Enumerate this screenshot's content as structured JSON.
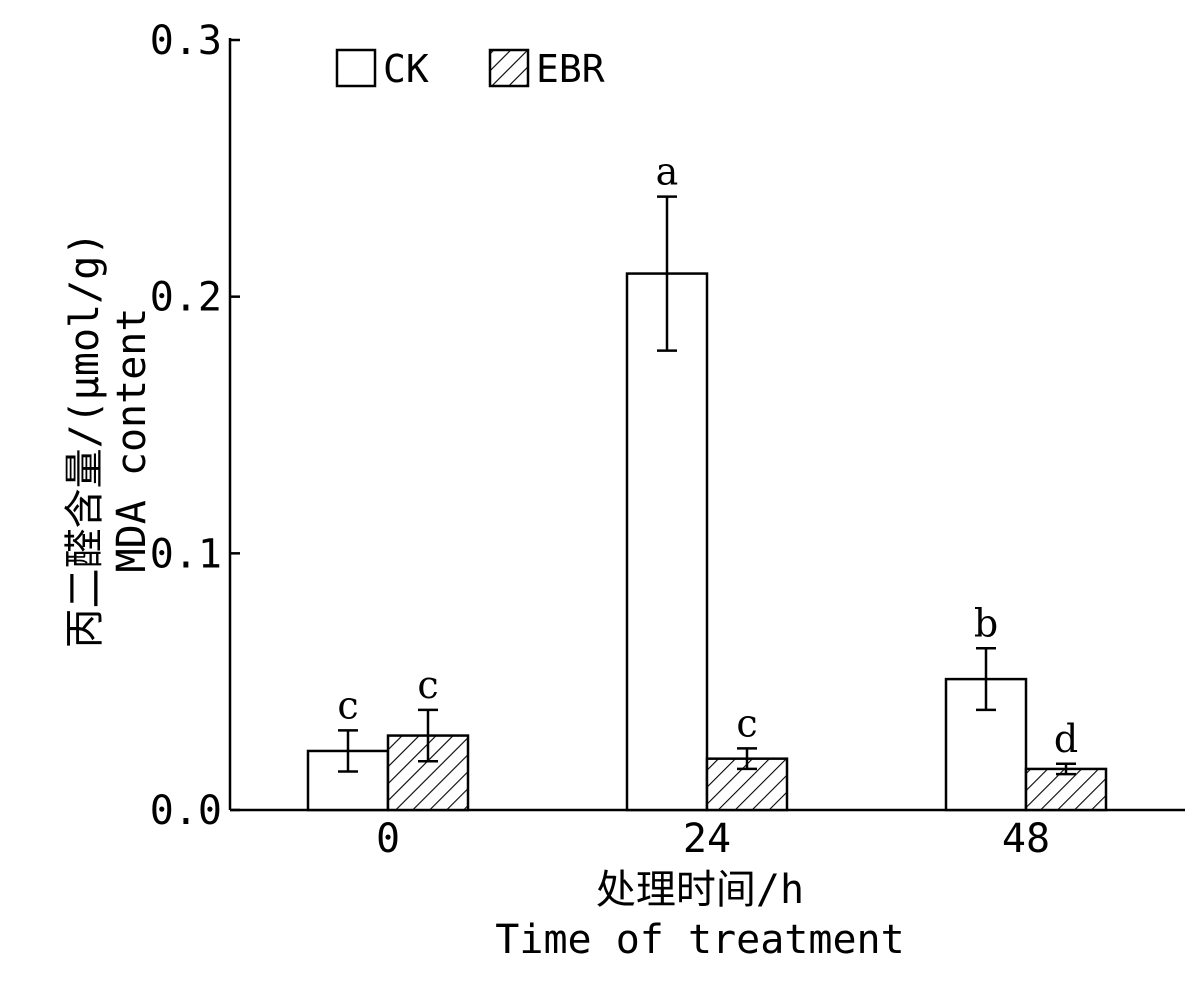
{
  "chart_data": {
    "type": "bar",
    "categories": [
      "0",
      "24",
      "48"
    ],
    "series": [
      {
        "name": "CK",
        "pattern": "open",
        "values": [
          0.023,
          0.209,
          0.051
        ],
        "errors": [
          0.008,
          0.03,
          0.012
        ],
        "labels": [
          "c",
          "a",
          "b"
        ]
      },
      {
        "name": "EBR",
        "pattern": "hatched",
        "values": [
          0.029,
          0.02,
          0.016
        ],
        "errors": [
          0.01,
          0.004,
          0.002
        ],
        "labels": [
          "c",
          "c",
          "d"
        ]
      }
    ],
    "ylim": [
      0,
      0.3
    ],
    "yticks": [
      "0.0",
      "0.1",
      "0.2",
      "0.3"
    ],
    "ylabel": [
      "丙二醛含量/(μmol/g)",
      "MDA content"
    ],
    "xlabel": [
      "处理时间/h",
      "Time of treatment"
    ],
    "legend_position": "top-left",
    "grid": false,
    "colors": {
      "stroke": "#000000",
      "fill": "#ffffff"
    }
  }
}
